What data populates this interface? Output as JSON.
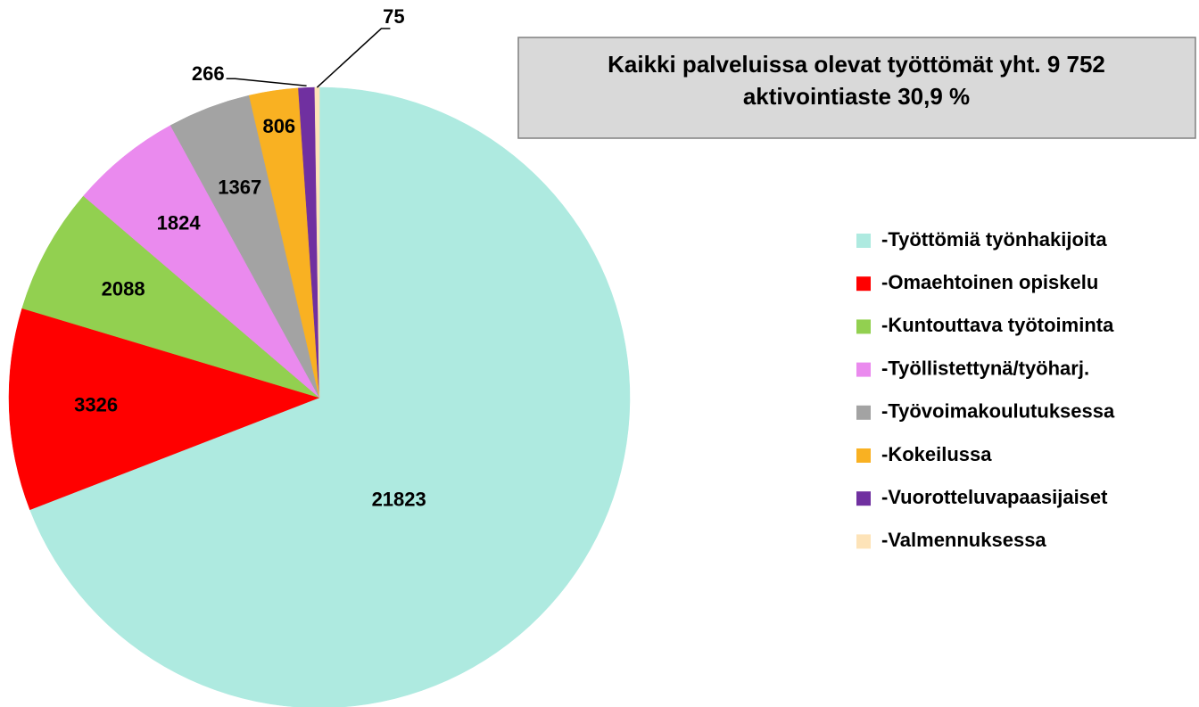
{
  "chart_data": {
    "type": "pie",
    "title": "Kaikki palveluissa olevat työttömät yht. 9 752",
    "subtitle": "aktivointiaste 30,9 %",
    "categories": [
      "-Työttömiä työnhakijoita",
      "-Omaehtoinen opiskelu",
      "-Kuntouttava työtoiminta",
      "-Työllistettynä/työharj.",
      "-Työvoimakoulutuksessa",
      "-Kokeilussa",
      "-Vuorotteluvapaasijaiset",
      "-Valmennuksessa"
    ],
    "values": [
      21823,
      3326,
      2088,
      1824,
      1367,
      806,
      266,
      75
    ],
    "colors": [
      "#aeeae0",
      "#ff0000",
      "#92d050",
      "#ea8aee",
      "#a3a3a3",
      "#f9b122",
      "#7030a0",
      "#fde3b8"
    ],
    "legend": "right"
  }
}
